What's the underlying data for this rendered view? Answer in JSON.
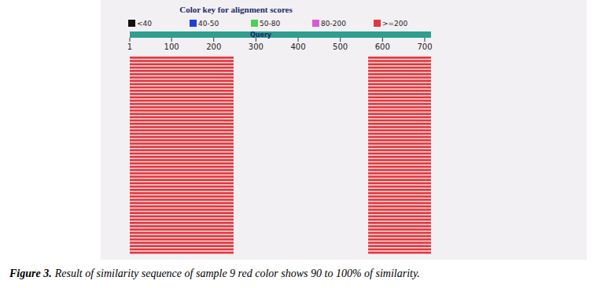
{
  "chart_data": {
    "type": "alignment",
    "title": "Color key for alignment scores",
    "axis_label": "Query",
    "score_key": [
      {
        "label": "<40",
        "color": "#111111"
      },
      {
        "label": "40-50",
        "color": "#1f3fd8"
      },
      {
        "label": "50-80",
        "color": "#4fcf55"
      },
      {
        "label": "80-200",
        "color": "#d65ad6"
      },
      {
        "label": ">=200",
        "color": "#e0383e"
      }
    ],
    "xlim": [
      1,
      715
    ],
    "xticks": [
      1,
      100,
      200,
      300,
      400,
      500,
      600,
      700
    ],
    "hits": [
      {
        "start": 1,
        "end": 247,
        "rows": 60,
        "color": "#e0383e"
      },
      {
        "start": 566,
        "end": 715,
        "rows": 60,
        "color": "#e0383e"
      }
    ]
  },
  "caption": {
    "label": "Figure 3.",
    "text": "Result of similarity sequence of sample 9 red color shows 90 to 100% of similarity."
  }
}
